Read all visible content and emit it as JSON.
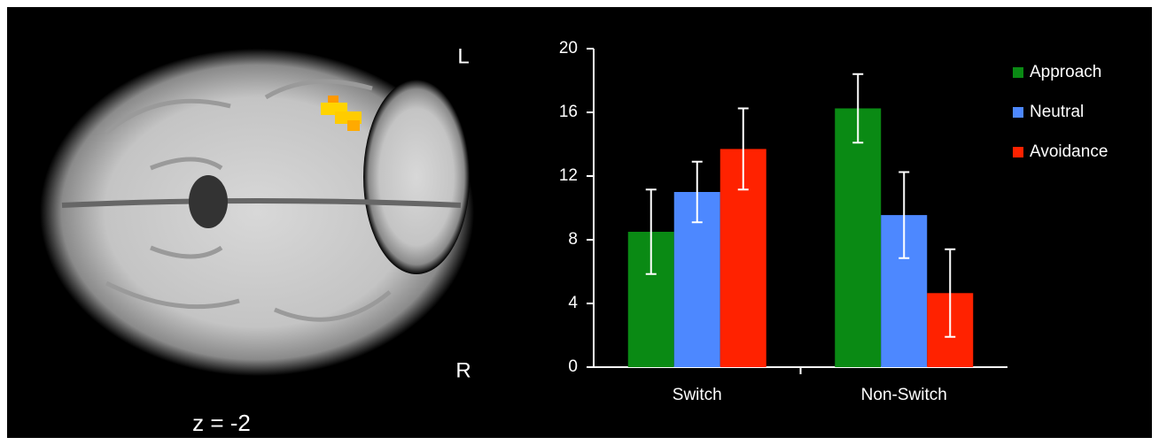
{
  "brain_panel": {
    "left_label": "L",
    "right_label": "R",
    "slice_label": "z = -2"
  },
  "chart_data": {
    "type": "bar",
    "categories": [
      "Switch",
      "Non-Switch"
    ],
    "series": [
      {
        "name": "Approach",
        "color": "#0a8a14",
        "values": [
          8.5,
          16.25
        ],
        "errors": [
          2.65,
          2.15
        ]
      },
      {
        "name": "Neutral",
        "color": "#4d88ff",
        "values": [
          11.0,
          9.55
        ],
        "errors": [
          1.9,
          2.7
        ]
      },
      {
        "name": "Avoidance",
        "color": "#ff2200",
        "values": [
          13.7,
          4.65
        ],
        "errors": [
          2.55,
          2.75
        ]
      }
    ],
    "ylim": [
      0,
      20
    ],
    "yticks": [
      0,
      4,
      8,
      12,
      16,
      20
    ],
    "legend": "upper right"
  }
}
